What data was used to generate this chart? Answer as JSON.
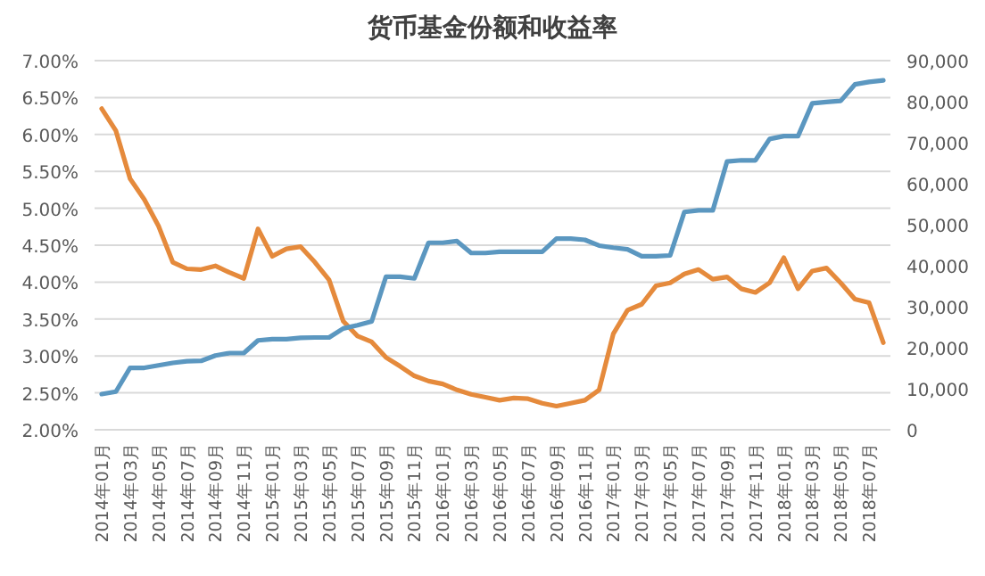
{
  "chart_data": {
    "type": "line",
    "title": "货币基金份额和收益率",
    "categories": [
      "2014年01月",
      null,
      "2014年03月",
      null,
      "2014年05月",
      null,
      "2014年07月",
      null,
      "2014年09月",
      null,
      "2014年11月",
      null,
      "2015年01月",
      null,
      "2015年03月",
      null,
      "2015年05月",
      null,
      "2015年07月",
      null,
      "2015年09月",
      null,
      "2015年11月",
      null,
      "2016年01月",
      null,
      "2016年03月",
      null,
      "2016年05月",
      null,
      "2016年07月",
      null,
      "2016年09月",
      null,
      "2016年11月",
      null,
      "2017年01月",
      null,
      "2017年03月",
      null,
      "2017年05月",
      null,
      "2017年07月",
      null,
      "2017年09月",
      null,
      "2017年11月",
      null,
      "2018年01月",
      null,
      "2018年03月",
      null,
      "2018年05月",
      null,
      "2018年07月",
      null
    ],
    "series": [
      {
        "color": "#e58a3c",
        "axis": "y",
        "values": [
          6.35,
          6.05,
          5.4,
          5.12,
          4.76,
          4.27,
          4.18,
          4.17,
          4.22,
          4.13,
          4.05,
          4.72,
          4.35,
          4.45,
          4.48,
          4.27,
          4.03,
          3.47,
          3.27,
          3.19,
          2.98,
          2.86,
          2.73,
          2.66,
          2.62,
          2.54,
          2.48,
          2.44,
          2.4,
          2.43,
          2.42,
          2.36,
          2.32,
          2.36,
          2.4,
          2.54,
          3.3,
          3.62,
          3.7,
          3.95,
          3.99,
          4.11,
          4.17,
          4.04,
          4.07,
          3.91,
          3.86,
          3.99,
          4.33,
          3.91,
          4.15,
          4.19,
          3.99,
          3.77,
          3.72,
          3.18
        ]
      },
      {
        "color": "#5b97c0",
        "axis": "y2",
        "values": [
          8700,
          9300,
          15100,
          15100,
          15700,
          16300,
          16700,
          16800,
          18100,
          18700,
          18700,
          21800,
          22100,
          22100,
          22400,
          22500,
          22500,
          24700,
          25500,
          26400,
          37300,
          37300,
          36900,
          45600,
          45600,
          46000,
          43100,
          43100,
          43400,
          43400,
          43400,
          43400,
          46600,
          46600,
          46300,
          44900,
          44400,
          44000,
          42300,
          42300,
          42500,
          53100,
          53500,
          53500,
          65400,
          65700,
          65700,
          70900,
          71600,
          71600,
          79600,
          79900,
          80200,
          84200,
          84800,
          85200
        ]
      }
    ],
    "ylim": [
      2,
      7
    ],
    "yticks": [
      {
        "value": 2,
        "label": "2.00%"
      },
      {
        "value": 2.5,
        "label": "2.50%"
      },
      {
        "value": 3,
        "label": "3.00%"
      },
      {
        "value": 3.5,
        "label": "3.50%"
      },
      {
        "value": 4,
        "label": "4.00%"
      },
      {
        "value": 4.5,
        "label": "4.50%"
      },
      {
        "value": 5,
        "label": "5.00%"
      },
      {
        "value": 5.5,
        "label": "5.50%"
      },
      {
        "value": 6,
        "label": "6.00%"
      },
      {
        "value": 6.5,
        "label": "6.50%"
      },
      {
        "value": 7,
        "label": "7.00%"
      }
    ],
    "y2lim": [
      0,
      90000
    ],
    "y2ticks": [
      0,
      {
        "value": 10000,
        "label": "10,000"
      },
      {
        "value": 20000,
        "label": "20,000"
      },
      {
        "value": 30000,
        "label": "30,000"
      },
      {
        "value": 40000,
        "label": "40,000"
      },
      {
        "value": 50000,
        "label": "50,000"
      },
      {
        "value": 60000,
        "label": "60,000"
      },
      {
        "value": 70000,
        "label": "70,000"
      },
      {
        "value": 80000,
        "label": "80,000"
      },
      {
        "value": 90000,
        "label": "90,000"
      }
    ],
    "grid": "y",
    "marker": "none",
    "line_style": "solid"
  }
}
